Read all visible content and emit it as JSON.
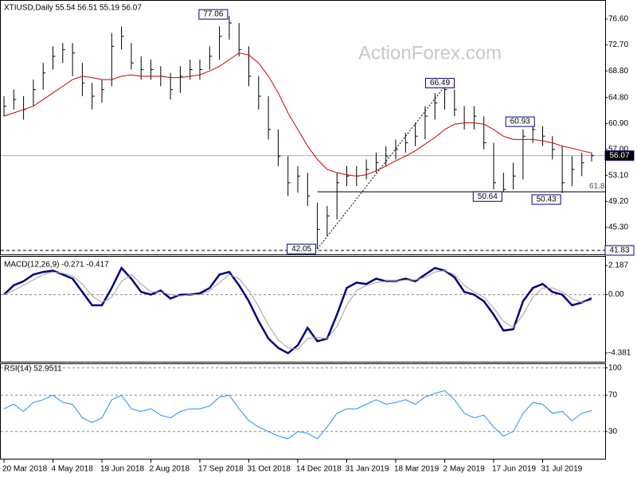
{
  "chart_data": [
    {
      "type": "ohlc",
      "title": "XTIUSD,Daily  55.54 56.51 55.19 56.07",
      "watermark": "ActionForex.com",
      "categories": [
        "20 Mar 2018",
        null,
        null,
        null,
        null,
        "4 May 2018",
        null,
        null,
        null,
        null,
        "19 Jun 2018",
        null,
        null,
        null,
        null,
        "2 Aug 2018",
        null,
        null,
        null,
        null,
        "17 Sep 2018",
        null,
        null,
        null,
        null,
        "31 Oct 2018",
        null,
        null,
        null,
        null,
        "14 Dec 2018",
        null,
        null,
        null,
        null,
        "31 Jan 2019",
        null,
        null,
        null,
        null,
        "18 Mar 2019",
        null,
        null,
        null,
        null,
        "2 May 2019",
        null,
        null,
        null,
        null,
        "17 Jun 2019",
        null,
        null,
        null,
        null,
        "31 Jul 2019",
        null,
        null,
        null,
        null,
        null
      ],
      "high": [
        65,
        66,
        65,
        67.5,
        70,
        72.5,
        73,
        73,
        70,
        67,
        67.5,
        74.5,
        75.5,
        73,
        71,
        70.5,
        69.5,
        68.5,
        69.5,
        70.5,
        70.5,
        72.5,
        75.5,
        77.06,
        76,
        72.5,
        68,
        65,
        60,
        56,
        54.5,
        53.5,
        49,
        48.5,
        53.5,
        54.5,
        54.5,
        55.5,
        56.5,
        57.5,
        58.5,
        59.5,
        61,
        63.5,
        65.5,
        66.49,
        66,
        63.5,
        63.5,
        62,
        58,
        53.5,
        55,
        60,
        60.93,
        60.5,
        59,
        57.5,
        56,
        56.5,
        56.51
      ],
      "low": [
        62,
        63,
        61.5,
        63.5,
        66,
        69,
        70,
        68,
        65,
        63,
        64,
        66.5,
        72,
        69,
        67.5,
        67.5,
        66.5,
        64.5,
        65.5,
        67.5,
        67.5,
        69,
        70.5,
        73.5,
        71,
        66.5,
        63,
        58.5,
        54.5,
        50,
        50.5,
        48.5,
        42.05,
        44,
        46.5,
        51.5,
        51.5,
        52.5,
        53.5,
        54.5,
        55.5,
        56.5,
        57.5,
        58.5,
        61.5,
        63,
        62,
        60,
        60,
        57,
        51,
        50.64,
        51,
        52.5,
        58,
        57.5,
        55.5,
        50.43,
        51.5,
        53,
        55.19
      ],
      "close": [
        63.5,
        64.5,
        63,
        66,
        68.5,
        71,
        72,
        71.5,
        67,
        65,
        66,
        72.5,
        74,
        70,
        69,
        69,
        68,
        66,
        68,
        69,
        69,
        71,
        74,
        76,
        72,
        68,
        65,
        60,
        56,
        52,
        53,
        50,
        45,
        47,
        52,
        53,
        53,
        54,
        55,
        56,
        57,
        58,
        59,
        62,
        64,
        66,
        63,
        61,
        62,
        58,
        52,
        51,
        53,
        59,
        60,
        59,
        57,
        52,
        54,
        55,
        56.07
      ],
      "color": "#000000",
      "ma": {
        "color": "#cc0000",
        "values": [
          62,
          62.5,
          63,
          63.5,
          64.5,
          65.5,
          66.5,
          67.5,
          68,
          67.8,
          67.5,
          67.5,
          68,
          68.2,
          68,
          68,
          68,
          67.8,
          67.8,
          68,
          68.2,
          68.8,
          69.5,
          70.5,
          71.5,
          71.2,
          70,
          68,
          65.5,
          62.5,
          60,
          57.5,
          55.5,
          54,
          53.5,
          53.2,
          53,
          53.2,
          53.8,
          54.5,
          55.3,
          56,
          56.8,
          57.8,
          58.8,
          60,
          60.8,
          61,
          61,
          60.8,
          60,
          59,
          58.5,
          58.5,
          58.5,
          58.3,
          58,
          57.5,
          57.2,
          56.8,
          56.5
        ]
      },
      "levels": [
        41.83
      ],
      "fib_label": "61.8",
      "ylim": [
        41.23,
        79.1
      ],
      "yticks": [
        {
          "value": 76.6,
          "label": "76.60"
        },
        {
          "value": 72.7,
          "label": "72.70"
        },
        {
          "value": 68.8,
          "label": "68.80"
        },
        {
          "value": 64.8,
          "label": "64.80"
        },
        {
          "value": 60.9,
          "label": "60.90"
        },
        {
          "value": 57,
          "label": "57.00"
        },
        {
          "value": 53.1,
          "label": "53.10"
        },
        {
          "value": 49.2,
          "label": "49.20"
        },
        {
          "value": 45.3,
          "label": "45.30"
        }
      ]
    },
    {
      "type": "macd",
      "title": "MACD(12,26,9) -0.271 -0.417",
      "series": [
        {
          "color": "#000080",
          "values": [
            0.0,
            0.7,
            1.0,
            1.5,
            1.7,
            1.8,
            1.5,
            1.2,
            0.2,
            -0.8,
            -0.8,
            0.5,
            2.0,
            1.2,
            0.2,
            0,
            0.3,
            -0.3,
            0,
            0,
            0.1,
            0.5,
            1.5,
            1.7,
            0.7,
            -0.5,
            -2.0,
            -3.3,
            -4.0,
            -4.4,
            -3.8,
            -2.5,
            -3.5,
            -3.3,
            -1.5,
            0.5,
            0.9,
            0.8,
            1.2,
            1.0,
            1.0,
            1.2,
            1.0,
            1.5,
            2.0,
            1.8,
            1.3,
            0.2,
            0.0,
            -0.5,
            -1.5,
            -2.7,
            -2.6,
            -0.5,
            0.5,
            0.8,
            0.2,
            0.0,
            -0.8,
            -0.6,
            -0.271
          ]
        },
        {
          "color": "#a0a0a0",
          "values": [
            0.0,
            0.3,
            0.7,
            1.1,
            1.5,
            1.7,
            1.6,
            1.4,
            0.8,
            -0.1,
            -0.6,
            -0.2,
            1.0,
            1.5,
            0.8,
            0.2,
            0.2,
            0.0,
            -0.1,
            0,
            0,
            0.3,
            0.9,
            1.5,
            1.2,
            0.3,
            -0.9,
            -2.3,
            -3.4,
            -4.0,
            -4.1,
            -3.3,
            -3.2,
            -3.3,
            -2.4,
            -0.8,
            0.3,
            0.7,
            0.9,
            1.0,
            1.0,
            1.1,
            1.1,
            1.3,
            1.7,
            1.8,
            1.5,
            0.7,
            0.2,
            -0.2,
            -1.0,
            -2.0,
            -2.5,
            -1.5,
            -0.2,
            0.5,
            0.5,
            0.2,
            -0.3,
            -0.6,
            -0.417
          ]
        }
      ],
      "ylim": [
        -5.04,
        2.72
      ],
      "yticks": [
        2.187,
        {
          "value": 0,
          "label": "0.00"
        },
        -4.381
      ]
    },
    {
      "type": "rsi",
      "title": "RSI(14) 52.9511",
      "color": "#1e90ff",
      "values": [
        55,
        60,
        52,
        62,
        65,
        70,
        62,
        60,
        45,
        40,
        45,
        65,
        70,
        55,
        52,
        55,
        48,
        45,
        52,
        55,
        55,
        58,
        68,
        70,
        55,
        42,
        35,
        30,
        25,
        22,
        30,
        28,
        22,
        35,
        50,
        55,
        55,
        60,
        65,
        60,
        62,
        65,
        60,
        68,
        72,
        75,
        65,
        50,
        45,
        48,
        35,
        25,
        30,
        50,
        62,
        60,
        50,
        52,
        42,
        50,
        52.9511
      ],
      "ylim": [
        -0.8,
        103.3
      ],
      "yticks": [
        100,
        70,
        30
      ]
    }
  ]
}
